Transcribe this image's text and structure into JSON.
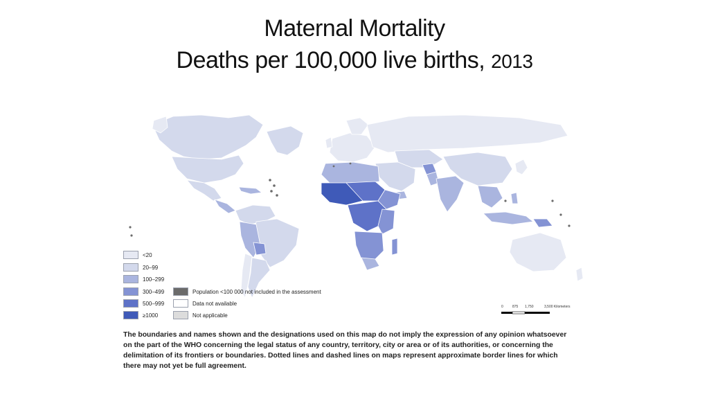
{
  "title": {
    "line1": "Maternal Mortality",
    "line2_main": "Deaths per 100,000 live births,",
    "line2_year": "2013"
  },
  "colors": {
    "lt20": "#e6e9f3",
    "r20_99": "#d3d9ec",
    "r100_299": "#aab5df",
    "r300_499": "#8493d4",
    "r500_999": "#5e72c8",
    "ge1000": "#3f5ab8",
    "small_pop": "#6b6b6b",
    "no_data": "#ffffff",
    "not_applicable": "#dcdcdc"
  },
  "legend": {
    "lt20": "<20",
    "r20_99": "20–99",
    "r100_299": "100–299",
    "r300_499": "300–499",
    "r500_999": "500–999",
    "ge1000": "≥1000",
    "small_pop": "Population <100 000 not included in the assessment",
    "no_data": "Data not available",
    "not_applicable": "Not applicable"
  },
  "scale": {
    "l0": "0",
    "l1": "875",
    "l2": "1,750",
    "l3": "3,500 Kilometers"
  },
  "disclaimer": "The boundaries and names shown and the designations used on this map do not imply the expression of any opinion whatsoever on the part of the WHO concerning the legal status of any country, territory, city or area or of its authorities, or concerning the delimitation of its frontiers or boundaries. Dotted lines and dashed lines on maps represent approximate border lines for which there may not yet be full agreement."
}
